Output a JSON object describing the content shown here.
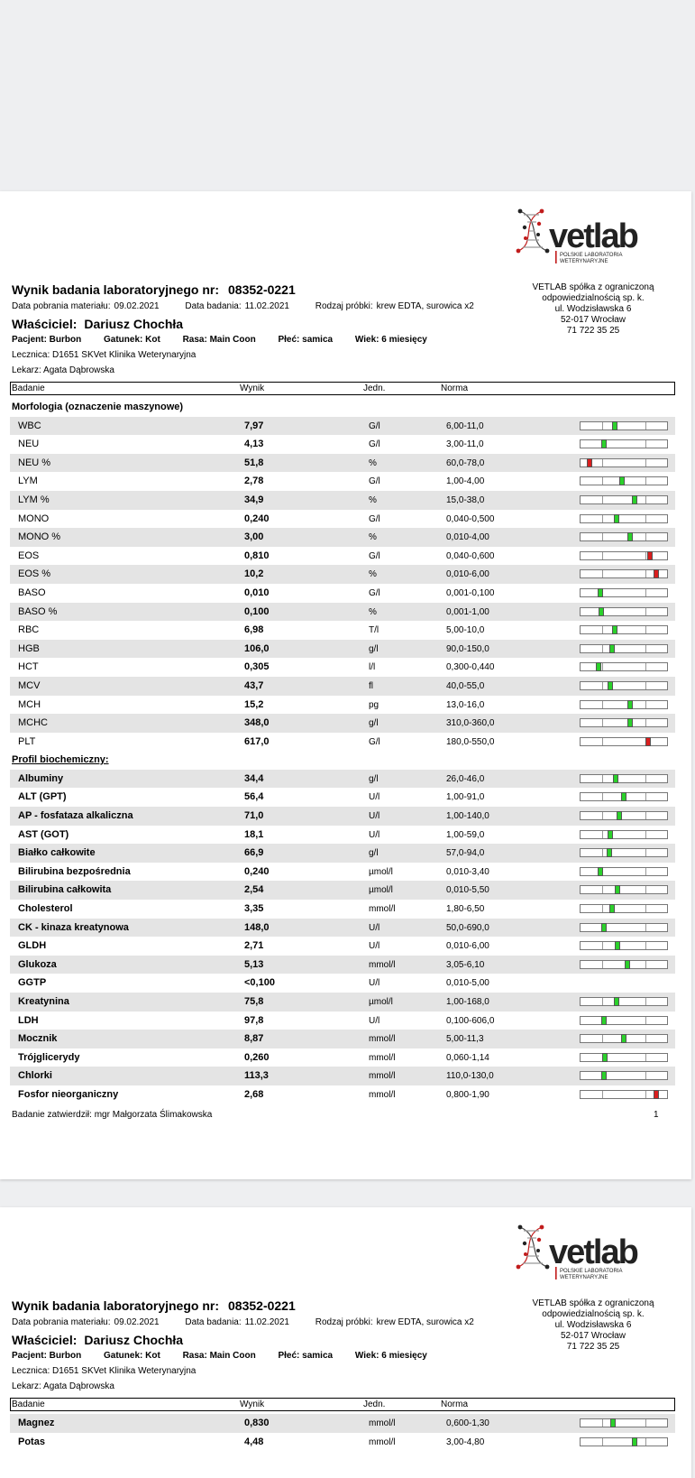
{
  "doc": {
    "title_label": "Wynik badania laboratoryjnego nr:",
    "number": "08352-0221",
    "sample_date_label": "Data pobrania materiału:",
    "sample_date": "09.02.2021",
    "exam_date_label": "Data badania:",
    "exam_date": "11.02.2021",
    "sample_type_label": "Rodzaj próbki:",
    "sample_type": "krew EDTA, surowica x2",
    "owner_label": "Właściciel:",
    "owner": "Dariusz Chochła",
    "patient": "Pacjent: Burbon",
    "species": "Gatunek: Kot",
    "breed": "Rasa: Main Coon",
    "sex": "Płeć: samica",
    "age": "Wiek: 6 miesięcy",
    "clinic": "Lecznica:  D1651 SKVet Klinika Weterynaryjna",
    "doctor": "Lekarz: Agata Dąbrowska"
  },
  "company": {
    "logo_text": "vetlab",
    "logo_sub1": "POLSKIE LABORATORIA",
    "logo_sub2": "WETERYNARYJNE",
    "lines": [
      "VETLAB spółka z ograniczoną",
      "odpowiedzialnością sp. k.",
      "ul. Wodzisławska 6",
      "52-017 Wrocław",
      "71 722 35 25"
    ]
  },
  "table": {
    "headers": {
      "name": "Badanie",
      "result": "Wynik",
      "unit": "Jedn.",
      "range": "Norma"
    },
    "colors": {
      "normal": "#2bd12b",
      "abnormal": "#d91e1e"
    },
    "sections": [
      {
        "title": "Morfologia (oznaczenie maszynowe)",
        "underline": false,
        "bold_names": false,
        "rows": [
          {
            "name": "WBC",
            "result": "7,97",
            "unit": "G/l",
            "range": "6,00-11,0",
            "level": 0.4,
            "abnormal": false
          },
          {
            "name": "NEU",
            "result": "4,13",
            "unit": "G/l",
            "range": "3,00-11,0",
            "level": 0.27,
            "abnormal": false
          },
          {
            "name": "NEU %",
            "result": "51,8",
            "unit": "%",
            "range": "60,0-78,0",
            "level": 0.1,
            "abnormal": true
          },
          {
            "name": "LYM",
            "result": "2,78",
            "unit": "G/l",
            "range": "1,00-4,00",
            "level": 0.48,
            "abnormal": false
          },
          {
            "name": "LYM %",
            "result": "34,9",
            "unit": "%",
            "range": "15,0-38,0",
            "level": 0.62,
            "abnormal": false
          },
          {
            "name": "MONO",
            "result": "0,240",
            "unit": "G/l",
            "range": "0,040-0,500",
            "level": 0.42,
            "abnormal": false
          },
          {
            "name": "MONO %",
            "result": "3,00",
            "unit": "%",
            "range": "0,010-4,00",
            "level": 0.57,
            "abnormal": false
          },
          {
            "name": "EOS",
            "result": "0,810",
            "unit": "G/l",
            "range": "0,040-0,600",
            "level": 0.8,
            "abnormal": true
          },
          {
            "name": "EOS %",
            "result": "10,2",
            "unit": "%",
            "range": "0,010-6,00",
            "level": 0.87,
            "abnormal": true
          },
          {
            "name": "BASO",
            "result": "0,010",
            "unit": "G/l",
            "range": "0,001-0,100",
            "level": 0.23,
            "abnormal": false
          },
          {
            "name": "BASO %",
            "result": "0,100",
            "unit": "%",
            "range": "0,001-1,00",
            "level": 0.24,
            "abnormal": false
          },
          {
            "name": "RBC",
            "result": "6,98",
            "unit": "T/l",
            "range": "5,00-10,0",
            "level": 0.4,
            "abnormal": false
          },
          {
            "name": "HGB",
            "result": "106,0",
            "unit": "g/l",
            "range": "90,0-150,0",
            "level": 0.36,
            "abnormal": false
          },
          {
            "name": "HCT",
            "result": "0,305",
            "unit": "l/l",
            "range": "0,300-0,440",
            "level": 0.21,
            "abnormal": false
          },
          {
            "name": "MCV",
            "result": "43,7",
            "unit": "fl",
            "range": "40,0-55,0",
            "level": 0.34,
            "abnormal": false
          },
          {
            "name": "MCH",
            "result": "15,2",
            "unit": "pg",
            "range": "13,0-16,0",
            "level": 0.57,
            "abnormal": false
          },
          {
            "name": "MCHC",
            "result": "348,0",
            "unit": "g/l",
            "range": "310,0-360,0",
            "level": 0.57,
            "abnormal": false
          },
          {
            "name": "PLT",
            "result": "617,0",
            "unit": "G/l",
            "range": "180,0-550,0",
            "level": 0.78,
            "abnormal": true
          }
        ]
      },
      {
        "title": "Profil biochemiczny:",
        "underline": true,
        "bold_names": true,
        "rows": [
          {
            "name": "Albuminy",
            "result": "34,4",
            "unit": "g/l",
            "range": "26,0-46,0",
            "level": 0.41,
            "abnormal": false
          },
          {
            "name": "ALT (GPT)",
            "result": "56,4",
            "unit": "U/l",
            "range": "1,00-91,0",
            "level": 0.5,
            "abnormal": false
          },
          {
            "name": "AP - fosfataza alkaliczna",
            "result": "71,0",
            "unit": "U/l",
            "range": "1,00-140,0",
            "level": 0.45,
            "abnormal": false
          },
          {
            "name": "AST (GOT)",
            "result": "18,1",
            "unit": "U/l",
            "range": "1,00-59,0",
            "level": 0.34,
            "abnormal": false
          },
          {
            "name": "Białko całkowite",
            "result": "66,9",
            "unit": "g/l",
            "range": "57,0-94,0",
            "level": 0.33,
            "abnormal": false
          },
          {
            "name": "Bilirubina bezpośrednia",
            "result": "0,240",
            "unit": "µmol/l",
            "range": "0,010-3,40",
            "level": 0.23,
            "abnormal": false
          },
          {
            "name": "Bilirubina całkowita",
            "result": "2,54",
            "unit": "µmol/l",
            "range": "0,010-5,50",
            "level": 0.43,
            "abnormal": false
          },
          {
            "name": "Cholesterol",
            "result": "3,35",
            "unit": "mmol/l",
            "range": "1,80-6,50",
            "level": 0.36,
            "abnormal": false
          },
          {
            "name": "CK - kinaza kreatynowa",
            "result": "148,0",
            "unit": "U/l",
            "range": "50,0-690,0",
            "level": 0.27,
            "abnormal": false
          },
          {
            "name": "GLDH",
            "result": "2,71",
            "unit": "U/l",
            "range": "0,010-6,00",
            "level": 0.43,
            "abnormal": false
          },
          {
            "name": "Glukoza",
            "result": "5,13",
            "unit": "mmol/l",
            "range": "3,05-6,10",
            "level": 0.54,
            "abnormal": false
          },
          {
            "name": "GGTP",
            "result": "<0,100",
            "unit": "U/l",
            "range": "0,010-5,00",
            "level": null,
            "abnormal": false
          },
          {
            "name": "Kreatynina",
            "result": "75,8",
            "unit": "µmol/l",
            "range": "1,00-168,0",
            "level": 0.42,
            "abnormal": false
          },
          {
            "name": "LDH",
            "result": "97,8",
            "unit": "U/l",
            "range": "0,100-606,0",
            "level": 0.27,
            "abnormal": false
          },
          {
            "name": "Mocznik",
            "result": "8,87",
            "unit": "mmol/l",
            "range": "5,00-11,3",
            "level": 0.5,
            "abnormal": false
          },
          {
            "name": "Trójglicerydy",
            "result": "0,260",
            "unit": "mmol/l",
            "range": "0,060-1,14",
            "level": 0.28,
            "abnormal": false
          },
          {
            "name": "Chlorki",
            "result": "113,3",
            "unit": "mmol/l",
            "range": "110,0-130,0",
            "level": 0.27,
            "abnormal": false
          },
          {
            "name": "Fosfor nieorganiczny",
            "result": "2,68",
            "unit": "mmol/l",
            "range": "0,800-1,90",
            "level": 0.88,
            "abnormal": true
          }
        ]
      }
    ]
  },
  "page2_rows": [
    {
      "name": "Magnez",
      "result": "0,830",
      "unit": "mmol/l",
      "range": "0,600-1,30",
      "level": 0.37,
      "abnormal": false
    },
    {
      "name": "Potas",
      "result": "4,48",
      "unit": "mmol/l",
      "range": "3,00-4,80",
      "level": 0.62,
      "abnormal": false
    }
  ],
  "footer": {
    "approved": "Badanie  zatwierdził:  mgr  Małgorzata  Ślimakowska",
    "page_number": "1"
  }
}
